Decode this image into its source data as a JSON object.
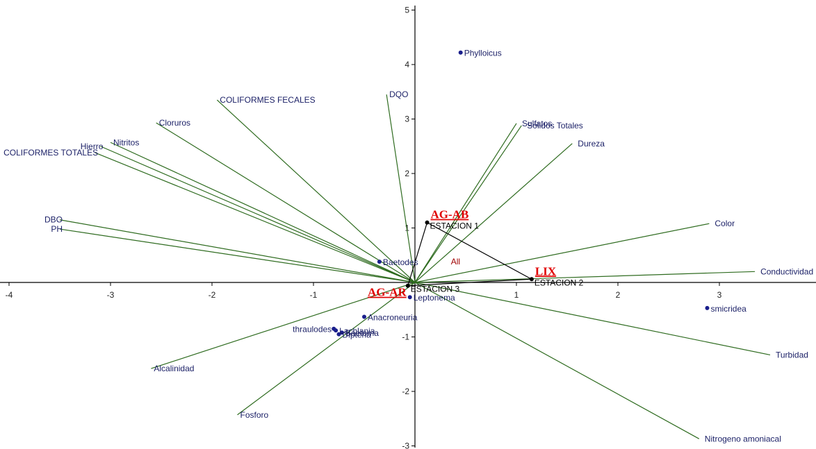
{
  "chart_data": {
    "type": "scatter",
    "title": "",
    "xlabel": "",
    "ylabel": "",
    "xlim": [
      -4,
      4
    ],
    "ylim": [
      -3,
      5
    ],
    "xticks": [
      "-4",
      "-3",
      "-2",
      "-1",
      "1",
      "2",
      "3"
    ],
    "yticks": [
      "-3",
      "-2",
      "-1",
      "1",
      "2",
      "3",
      "4",
      "5"
    ],
    "colors": {
      "vector": "#2e6b1f",
      "point": "#1a1f8c",
      "station": "#000000",
      "site_label": "#e00000",
      "all_label": "#a00000"
    },
    "vectors": [
      {
        "name": "DQO",
        "x": -0.28,
        "y": 3.45
      },
      {
        "name": "COLIFORMES FECALES",
        "x": -1.95,
        "y": 3.35
      },
      {
        "name": "Cloruros",
        "x": -2.55,
        "y": 2.93
      },
      {
        "name": "Nitritos",
        "x": -3.0,
        "y": 2.57
      },
      {
        "name": "Hierro",
        "x": -3.1,
        "y": 2.5
      },
      {
        "name": "COLIFORMES TOTALES",
        "x": -3.15,
        "y": 2.38
      },
      {
        "name": "DBO",
        "x": -3.5,
        "y": 1.15
      },
      {
        "name": "PH",
        "x": -3.5,
        "y": 0.98
      },
      {
        "name": "Sulfatos",
        "x": 1.0,
        "y": 2.92
      },
      {
        "name": "Solidos Totales",
        "x": 1.05,
        "y": 2.88
      },
      {
        "name": "Dureza",
        "x": 1.55,
        "y": 2.55
      },
      {
        "name": "Color",
        "x": 2.9,
        "y": 1.08
      },
      {
        "name": "Conductividad",
        "x": 3.35,
        "y": 0.2
      },
      {
        "name": "Turbidad",
        "x": 3.5,
        "y": -1.33
      },
      {
        "name": "Nitrogeno amoniacal",
        "x": 2.8,
        "y": -2.87
      },
      {
        "name": "Alcalinidad",
        "x": -2.6,
        "y": -1.58
      },
      {
        "name": "Fosforo",
        "x": -1.75,
        "y": -2.43
      }
    ],
    "species": [
      {
        "name": "Phylloicus",
        "x": 0.45,
        "y": 4.22
      },
      {
        "name": "Baetodes",
        "x": -0.35,
        "y": 0.38
      },
      {
        "name": "Leptonema",
        "x": -0.05,
        "y": -0.27
      },
      {
        "name": "Anacroneuria",
        "x": -0.5,
        "y": -0.63
      },
      {
        "name": "thraulodes",
        "x": -0.8,
        "y": -0.85
      },
      {
        "name": "Lachlania",
        "x": -0.78,
        "y": -0.88
      },
      {
        "name": "Dipteria",
        "x": -0.75,
        "y": -0.95
      },
      {
        "name": "Baetoma",
        "x": -0.72,
        "y": -0.92
      },
      {
        "name": "smicridea",
        "x": 2.88,
        "y": -0.47
      }
    ],
    "stations": [
      {
        "name": "ESTACION 1",
        "site": "AG-AB",
        "x": 0.12,
        "y": 1.1
      },
      {
        "name": "ESTACION 2",
        "site": "LIX",
        "x": 1.15,
        "y": 0.06
      },
      {
        "name": "ESTACION 3",
        "site": "AG-AR",
        "x": -0.07,
        "y": -0.06
      }
    ],
    "centroid_label": {
      "text": "All",
      "x": 0.4,
      "y": 0.33
    }
  }
}
